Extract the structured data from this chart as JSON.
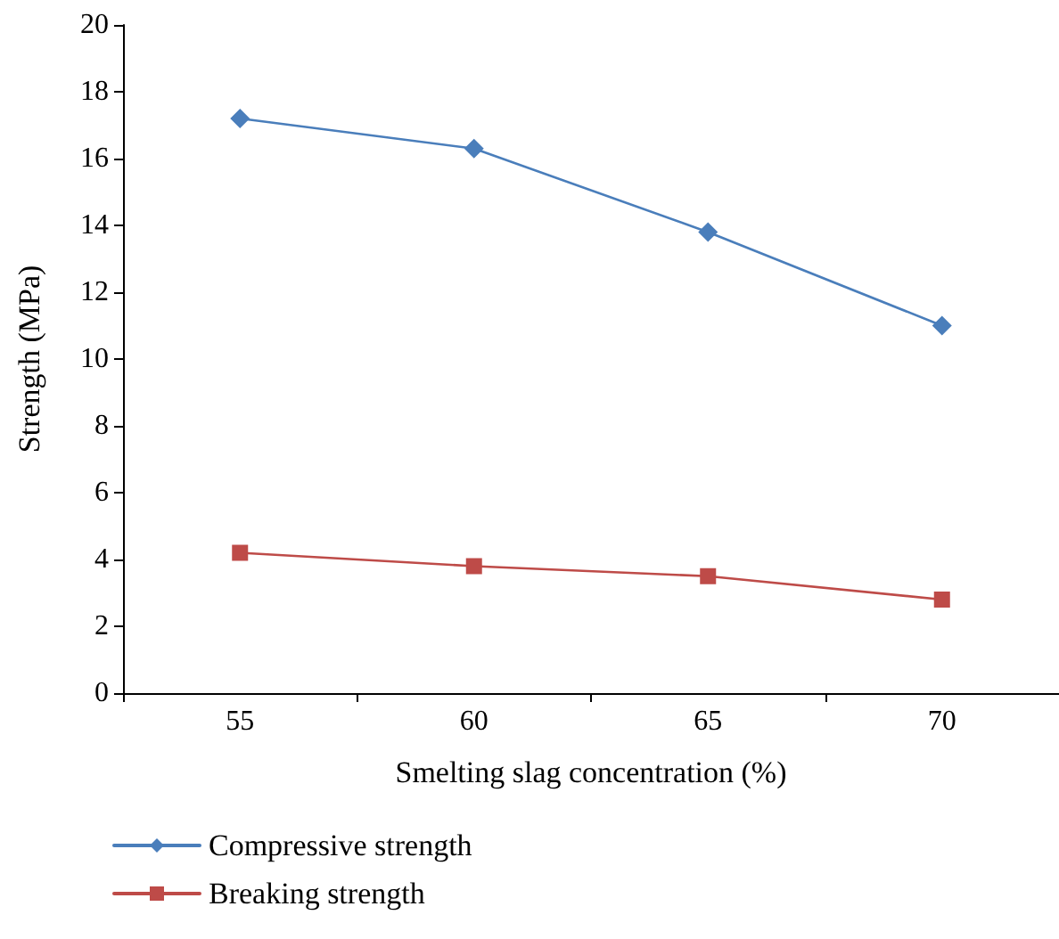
{
  "chart_data": {
    "type": "line",
    "xlabel": "Smelting slag concentration (%)",
    "ylabel": "Strength (MPa)",
    "categories": [
      "55",
      "60",
      "65",
      "70"
    ],
    "series": [
      {
        "name": "Compressive strength",
        "color": "#4a7ebb",
        "marker": "diamond",
        "values": [
          17.2,
          16.3,
          13.8,
          11.0
        ]
      },
      {
        "name": "Breaking strength",
        "color": "#be4b48",
        "marker": "square",
        "values": [
          4.2,
          3.8,
          3.5,
          2.8
        ]
      }
    ],
    "ylim": [
      0,
      20
    ],
    "yticks": [
      0,
      2,
      4,
      6,
      8,
      10,
      12,
      14,
      16,
      18,
      20
    ],
    "grid": false,
    "legend": "bottom left",
    "line_style": "solid"
  }
}
